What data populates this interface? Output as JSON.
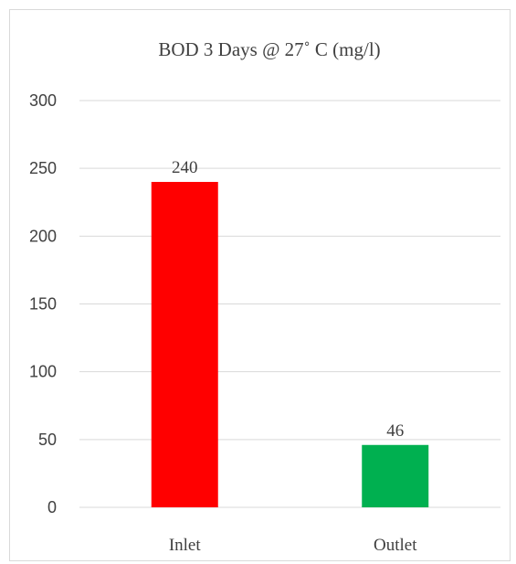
{
  "chart_data": {
    "type": "bar",
    "title": "BOD 3 Days @ 27˚ C (mg/l)",
    "xlabel": "",
    "ylabel": "",
    "categories": [
      "Inlet",
      "Outlet"
    ],
    "values": [
      240,
      46
    ],
    "data_labels": [
      "240",
      "46"
    ],
    "colors": [
      "#ff0000",
      "#00b050"
    ],
    "ylim": [
      0,
      300
    ],
    "yticks": [
      0,
      50,
      100,
      150,
      200,
      250,
      300
    ],
    "ytick_labels": [
      "0",
      "50",
      "100",
      "150",
      "200",
      "250",
      "300"
    ],
    "grid": true,
    "legend": "none"
  }
}
